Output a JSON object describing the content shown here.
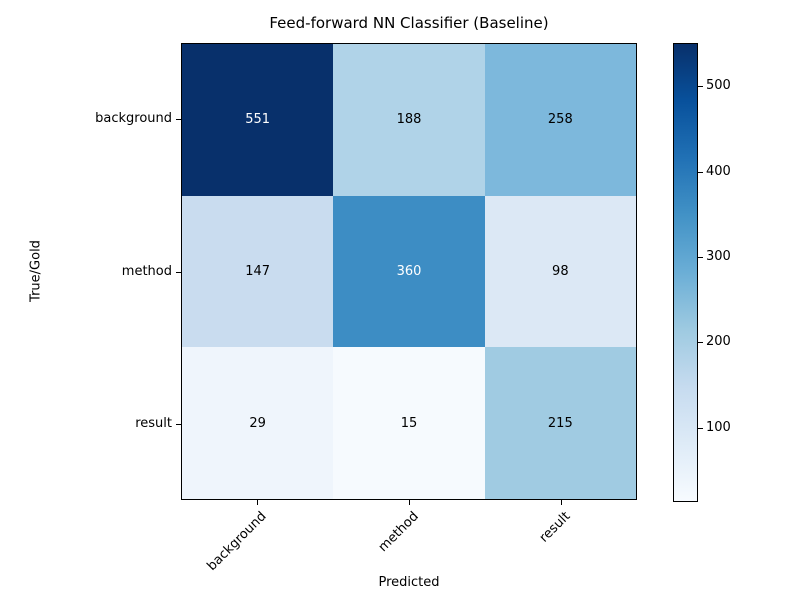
{
  "chart_data": {
    "type": "heatmap",
    "title": "Feed-forward NN Classifier (Baseline)",
    "xlabel": "Predicted",
    "ylabel": "True/Gold",
    "x_categories": [
      "background",
      "method",
      "result"
    ],
    "y_categories": [
      "background",
      "method",
      "result"
    ],
    "values": [
      [
        551,
        188,
        258
      ],
      [
        147,
        360,
        98
      ],
      [
        29,
        15,
        215
      ]
    ],
    "cell_colors": [
      [
        "#08306b",
        "#b0d3e8",
        "#7db8dc"
      ],
      [
        "#c9dcef",
        "#3d8dc4",
        "#dce8f5"
      ],
      [
        "#eff5fc",
        "#f6fafe",
        "#a0cbe2"
      ]
    ],
    "cell_text_colors": [
      [
        "#ffffff",
        "#000000",
        "#000000"
      ],
      [
        "#000000",
        "#ffffff",
        "#000000"
      ],
      [
        "#000000",
        "#000000",
        "#000000"
      ]
    ],
    "colormap": "Blues",
    "vmin": 15,
    "vmax": 551,
    "colorbar_ticks": [
      100,
      200,
      300,
      400,
      500
    ],
    "colormap_stops_low_to_high": [
      "#f7fbff",
      "#deebf7",
      "#c6dbef",
      "#9ecae1",
      "#6baed6",
      "#4292c6",
      "#2171b5",
      "#08519c",
      "#08306b"
    ],
    "spine_color": "#000000",
    "background_color": "#ffffff",
    "grid": false,
    "legend": "colorbar-right",
    "x_tick_rotation_deg": 45
  }
}
